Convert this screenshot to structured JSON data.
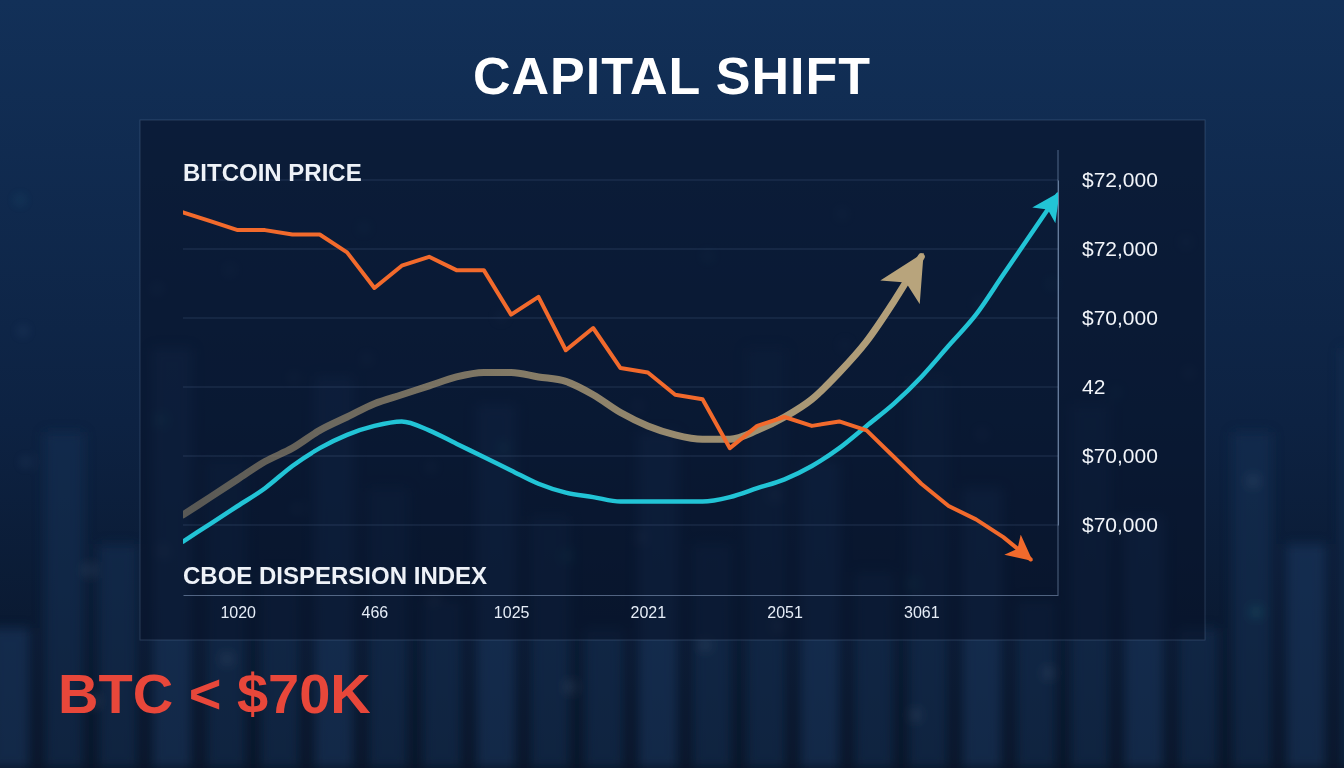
{
  "chart_data": {
    "type": "line",
    "title": "CAPITAL SHIFT",
    "categories": [
      null,
      null,
      "1020",
      null,
      null,
      null,
      null,
      "466",
      null,
      null,
      null,
      null,
      "1025",
      null,
      null,
      null,
      null,
      "2021",
      null,
      null,
      null,
      null,
      "2051",
      null,
      null,
      null,
      null,
      "3061",
      null,
      null,
      null,
      null,
      null
    ],
    "series": [
      {
        "name": "BITCOIN PRICE",
        "color": "#f26a2c",
        "marker": "arrow",
        "values": [
          86,
          84,
          82,
          82,
          81,
          81,
          77,
          69,
          74,
          76,
          73,
          73,
          63,
          67,
          55,
          60,
          51,
          50,
          45,
          44,
          33,
          38,
          40,
          38,
          39,
          37,
          31,
          25,
          20,
          17,
          13,
          8,
          null
        ]
      },
      {
        "name": "CBOE DISPERSION INDEX",
        "color": "#22c4d6",
        "marker": "arrow",
        "line_style": "smooth",
        "values": [
          12,
          16,
          20,
          24,
          29,
          33,
          36,
          38,
          39,
          37,
          34,
          31,
          28,
          25,
          23,
          22,
          21,
          21,
          21,
          21,
          22,
          24,
          26,
          29,
          33,
          38,
          43,
          49,
          56,
          63,
          72,
          81,
          90
        ]
      },
      {
        "color": "#b8a47c",
        "marker": "arrow",
        "line_style": "smooth",
        "values": [
          18,
          22,
          26,
          30,
          33,
          37,
          40,
          43,
          45,
          47,
          49,
          50,
          50,
          49,
          48,
          45,
          41,
          38,
          36,
          35,
          35,
          37,
          40,
          44,
          50,
          57,
          66,
          76,
          null,
          null,
          null,
          null,
          null
        ]
      }
    ],
    "ylim": [
      0,
      100
    ],
    "y_categories": [
      "$72,000",
      "$72,000",
      "$70,000",
      "42",
      "$70,000",
      "$70,000"
    ],
    "grid": true,
    "annotations": [
      "BTC < $70K"
    ]
  }
}
